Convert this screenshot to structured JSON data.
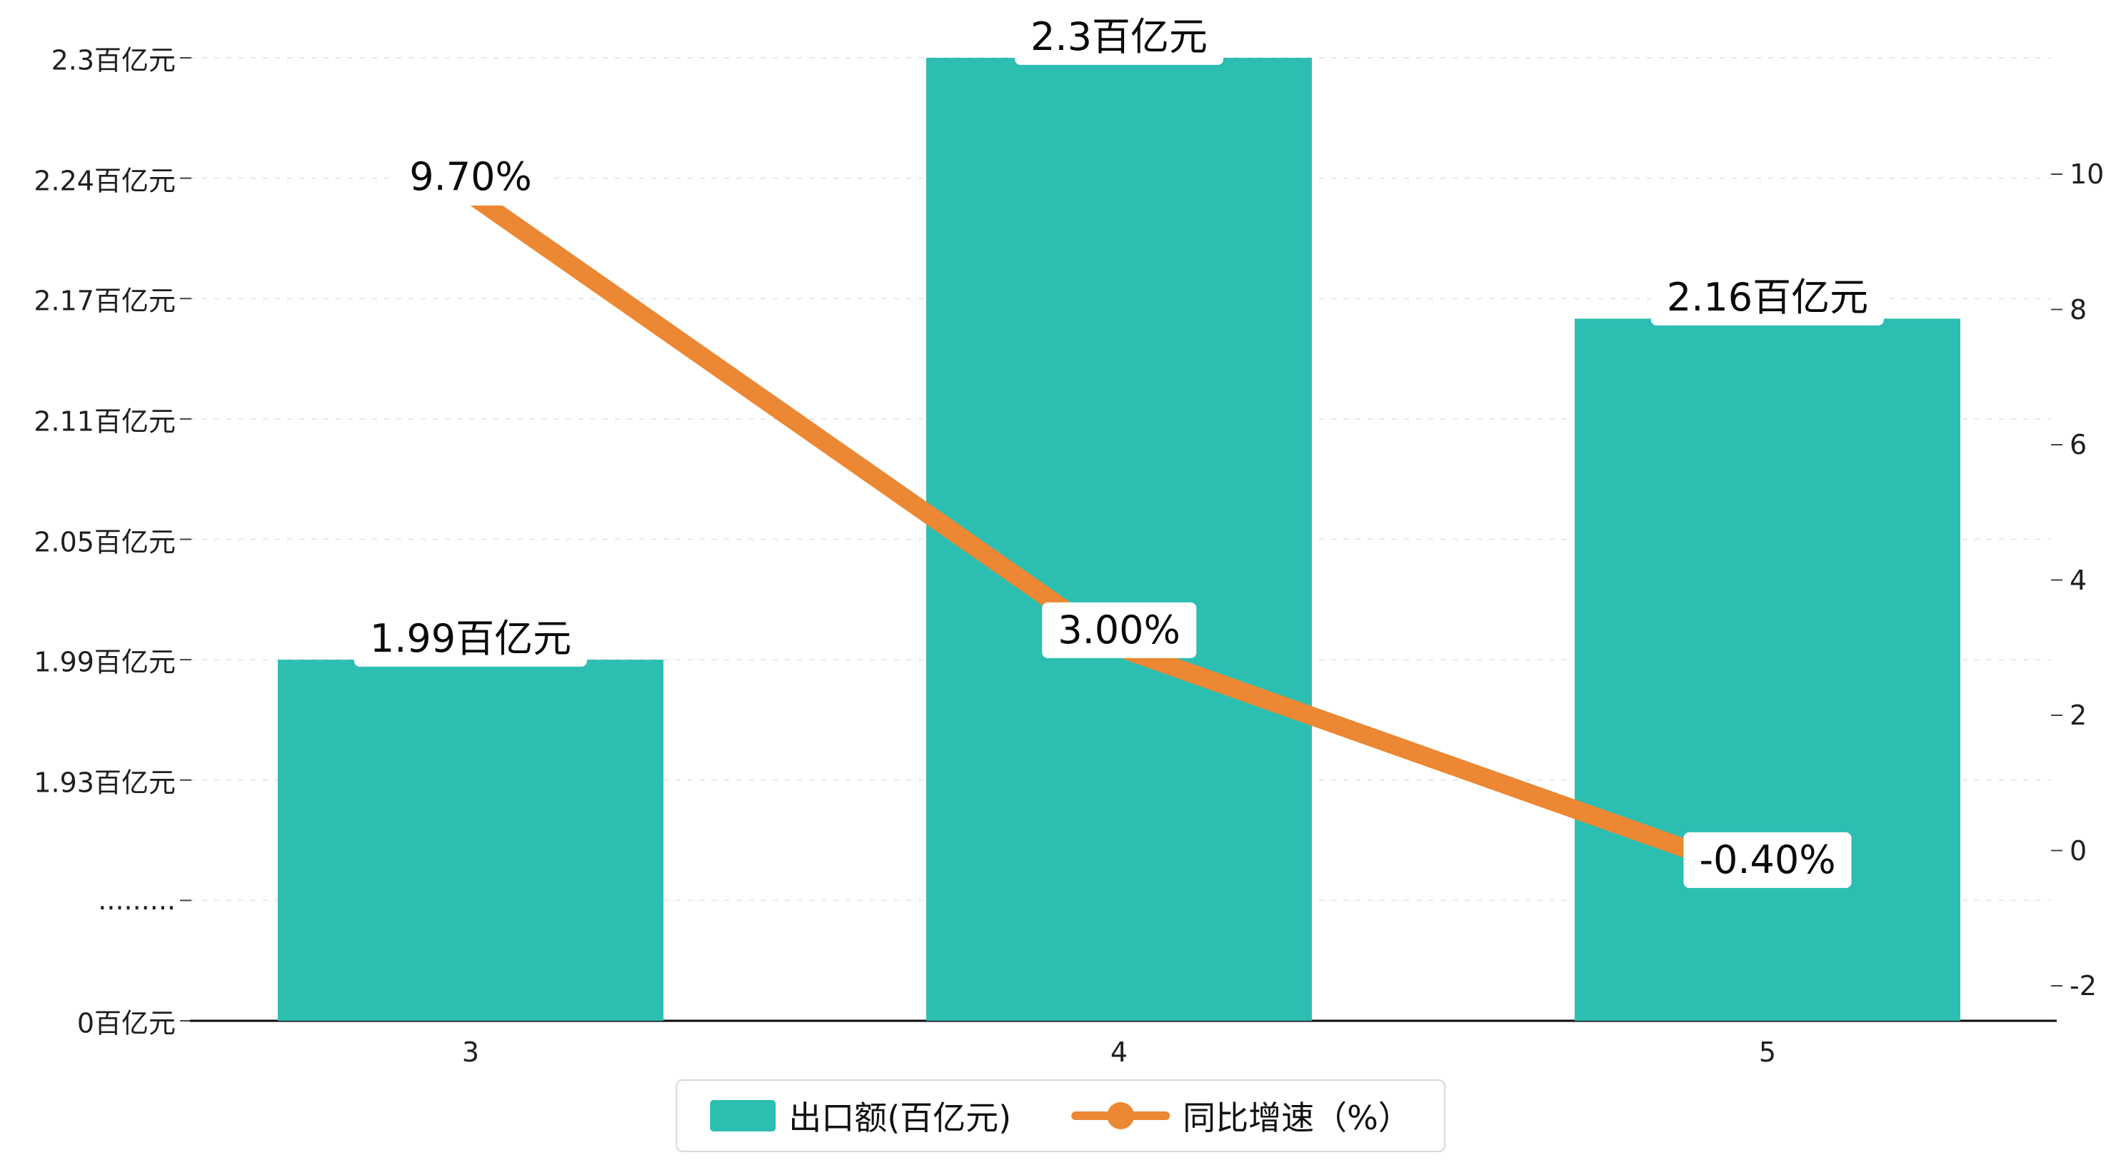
{
  "chart_data": {
    "type": "combo",
    "categories": [
      "3",
      "4",
      "5"
    ],
    "series": [
      {
        "name": "出口额(百亿元)",
        "type": "bar",
        "axis": "left",
        "color": "#2DBEB2",
        "values": [
          1.99,
          2.3,
          2.16
        ],
        "data_labels": [
          "1.99百亿元",
          "2.3百亿元",
          "2.16百亿元"
        ]
      },
      {
        "name": "同比增速（%）",
        "type": "line",
        "axis": "right",
        "color": "#EC8733",
        "values": [
          9.7,
          3.0,
          -0.4
        ],
        "data_labels": [
          "9.70%",
          "3.00%",
          "-0.40%"
        ]
      }
    ],
    "left_axis": {
      "tick_labels": [
        "2.3百亿元",
        "2.24百亿元",
        "2.17百亿元",
        "2.11百亿元",
        "2.05百亿元",
        "1.99百亿元",
        "1.93百亿元",
        ".........",
        "0百亿元"
      ],
      "tick_values": [
        2.3,
        2.24,
        2.17,
        2.11,
        2.05,
        1.99,
        1.93,
        null,
        0
      ],
      "axis_break": true
    },
    "right_axis": {
      "tick_labels": [
        "10",
        "8",
        "6",
        "4",
        "2",
        "0",
        "-2"
      ],
      "tick_values": [
        10,
        8,
        6,
        4,
        2,
        0,
        -2
      ],
      "min": -2,
      "max": 10
    },
    "x_axis": {
      "tick_labels": [
        "3",
        "4",
        "5"
      ]
    },
    "legend": {
      "position": "bottom",
      "items": [
        {
          "label": "出口额(百亿元)",
          "marker": "bar",
          "color": "#2DBEB2"
        },
        {
          "label": "同比增速（%）",
          "marker": "line",
          "color": "#EC8733"
        }
      ]
    },
    "grid": {
      "horizontal_dashed": true,
      "color": "#e7e7e7"
    },
    "background": "#FFFFFF"
  }
}
